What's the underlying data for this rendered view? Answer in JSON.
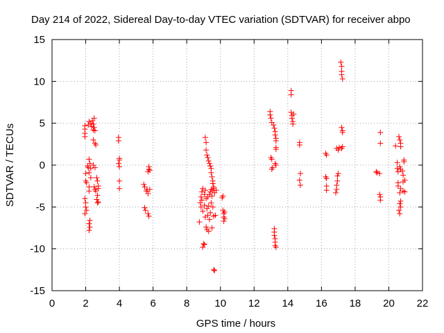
{
  "chart_data": {
    "type": "scatter",
    "title": "Day 214 of 2022, Sidereal Day-to-day VTEC variation (SDTVAR) for receiver abpo",
    "xlabel": "GPS time / hours",
    "ylabel": "SDTVAR / TECUs",
    "xlim": [
      0,
      22
    ],
    "ylim": [
      -15,
      15
    ],
    "xticks": [
      0,
      2,
      4,
      6,
      8,
      10,
      12,
      14,
      16,
      18,
      20,
      22
    ],
    "yticks": [
      -15,
      -10,
      -5,
      0,
      5,
      10,
      15
    ],
    "grid": true,
    "marker": "+",
    "color": "#ff0000",
    "series": [
      {
        "name": "SDTVAR",
        "points": [
          [
            1.95,
            4.7
          ],
          [
            1.95,
            4.3
          ],
          [
            1.95,
            3.8
          ],
          [
            1.95,
            3.4
          ],
          [
            2.0,
            -1.0
          ],
          [
            2.0,
            -1.9
          ],
          [
            2.05,
            -2.1
          ],
          [
            1.95,
            -4.0
          ],
          [
            2.0,
            -4.5
          ],
          [
            2.0,
            -5.0
          ],
          [
            2.05,
            -5.4
          ],
          [
            1.95,
            -5.8
          ],
          [
            2.1,
            -0.1
          ],
          [
            2.15,
            -0.3
          ],
          [
            2.2,
            0.7
          ],
          [
            2.25,
            0.2
          ],
          [
            2.3,
            -0.4
          ],
          [
            2.2,
            -0.9
          ],
          [
            2.3,
            -1.5
          ],
          [
            2.2,
            -2.6
          ],
          [
            2.2,
            -3.1
          ],
          [
            2.25,
            -6.6
          ],
          [
            2.2,
            -7.0
          ],
          [
            2.25,
            -7.4
          ],
          [
            2.2,
            -7.8
          ],
          [
            2.15,
            4.8
          ],
          [
            2.2,
            5.2
          ],
          [
            2.3,
            5.0
          ],
          [
            2.35,
            4.6
          ],
          [
            2.4,
            5.3
          ],
          [
            2.45,
            4.9
          ],
          [
            2.5,
            5.6
          ],
          [
            2.5,
            4.5
          ],
          [
            2.55,
            4.1
          ],
          [
            2.45,
            4.2
          ],
          [
            2.45,
            3.0
          ],
          [
            2.55,
            2.6
          ],
          [
            2.6,
            2.4
          ],
          [
            2.45,
            0.0
          ],
          [
            2.55,
            -0.3
          ],
          [
            2.5,
            -2.6
          ],
          [
            2.55,
            -2.9
          ],
          [
            2.6,
            -3.1
          ],
          [
            2.65,
            -1.5
          ],
          [
            2.7,
            -1.9
          ],
          [
            2.75,
            -2.5
          ],
          [
            2.75,
            -2.8
          ],
          [
            2.7,
            -3.6
          ],
          [
            2.65,
            -4.1
          ],
          [
            2.7,
            -4.5
          ],
          [
            2.75,
            -4.4
          ],
          [
            3.95,
            3.3
          ],
          [
            3.95,
            2.9
          ],
          [
            4.0,
            0.8
          ],
          [
            4.0,
            0.6
          ],
          [
            3.95,
            0.2
          ],
          [
            4.0,
            -0.2
          ],
          [
            4.0,
            -1.9
          ],
          [
            4.0,
            -2.8
          ],
          [
            5.45,
            -2.3
          ],
          [
            5.5,
            -2.6
          ],
          [
            5.5,
            -5.1
          ],
          [
            5.55,
            -5.4
          ],
          [
            5.6,
            -3.1
          ],
          [
            5.65,
            -2.9
          ],
          [
            5.7,
            -0.8
          ],
          [
            5.75,
            -0.5
          ],
          [
            5.75,
            -0.2
          ],
          [
            5.7,
            -3.4
          ],
          [
            5.7,
            -5.8
          ],
          [
            5.75,
            -6.1
          ],
          [
            5.8,
            -0.6
          ],
          [
            5.8,
            -2.9
          ],
          [
            8.75,
            -6.8
          ],
          [
            8.8,
            -4.5
          ],
          [
            8.85,
            -3.8
          ],
          [
            8.85,
            -5.0
          ],
          [
            8.9,
            -3.2
          ],
          [
            8.9,
            -4.2
          ],
          [
            8.95,
            -2.8
          ],
          [
            8.95,
            -5.5
          ],
          [
            8.95,
            -9.8
          ],
          [
            9.0,
            -9.4
          ],
          [
            9.05,
            -3.5
          ],
          [
            9.05,
            -4.8
          ],
          [
            9.05,
            -9.5
          ],
          [
            9.1,
            -3.0
          ],
          [
            9.1,
            -6.2
          ],
          [
            9.15,
            -4.0
          ],
          [
            9.15,
            -7.4
          ],
          [
            9.2,
            -5.2
          ],
          [
            9.2,
            -7.7
          ],
          [
            9.25,
            -3.8
          ],
          [
            9.25,
            -6.0
          ],
          [
            9.3,
            -4.9
          ],
          [
            9.3,
            -7.9
          ],
          [
            9.35,
            -3.5
          ],
          [
            9.35,
            -6.5
          ],
          [
            9.4,
            -3.2
          ],
          [
            9.4,
            -5.7
          ],
          [
            9.45,
            -2.9
          ],
          [
            9.45,
            -4.5
          ],
          [
            9.5,
            -3.7
          ],
          [
            9.5,
            -7.5
          ],
          [
            9.55,
            -3.0
          ],
          [
            9.55,
            -5.0
          ],
          [
            9.6,
            -2.8
          ],
          [
            9.6,
            -6.1
          ],
          [
            9.65,
            -3.3
          ],
          [
            9.1,
            3.3
          ],
          [
            9.15,
            2.7
          ],
          [
            9.15,
            1.8
          ],
          [
            9.2,
            1.2
          ],
          [
            9.25,
            0.9
          ],
          [
            9.3,
            0.5
          ],
          [
            9.35,
            0.2
          ],
          [
            9.4,
            -0.1
          ],
          [
            9.45,
            -0.4
          ],
          [
            9.45,
            -0.9
          ],
          [
            9.5,
            -1.4
          ],
          [
            9.55,
            -1.9
          ],
          [
            9.55,
            -2.2
          ],
          [
            9.6,
            -2.6
          ],
          [
            9.6,
            -12.5
          ],
          [
            9.65,
            -12.6
          ],
          [
            9.7,
            -6.0
          ],
          [
            9.75,
            -3.0
          ],
          [
            10.1,
            -3.9
          ],
          [
            10.15,
            -3.7
          ],
          [
            10.15,
            -5.4
          ],
          [
            10.2,
            -5.8
          ],
          [
            10.2,
            -6.2
          ],
          [
            10.2,
            -6.7
          ],
          [
            10.25,
            -6.4
          ],
          [
            10.25,
            -5.6
          ],
          [
            12.95,
            6.4
          ],
          [
            12.95,
            6.0
          ],
          [
            13.0,
            5.6
          ],
          [
            13.05,
            5.1
          ],
          [
            13.0,
            0.9
          ],
          [
            13.05,
            0.7
          ],
          [
            13.05,
            -0.5
          ],
          [
            13.1,
            -0.3
          ],
          [
            13.15,
            4.8
          ],
          [
            13.2,
            4.4
          ],
          [
            13.25,
            4.0
          ],
          [
            13.25,
            3.6
          ],
          [
            13.3,
            3.2
          ],
          [
            13.3,
            2.9
          ],
          [
            13.3,
            2.1
          ],
          [
            13.3,
            1.9
          ],
          [
            13.25,
            0.2
          ],
          [
            13.3,
            0.0
          ],
          [
            13.2,
            -7.6
          ],
          [
            13.2,
            -8.0
          ],
          [
            13.2,
            -8.4
          ],
          [
            13.25,
            -8.8
          ],
          [
            13.25,
            -9.2
          ],
          [
            13.25,
            -9.6
          ],
          [
            13.3,
            -9.8
          ],
          [
            14.2,
            8.9
          ],
          [
            14.2,
            8.4
          ],
          [
            14.2,
            6.3
          ],
          [
            14.25,
            5.9
          ],
          [
            14.25,
            5.6
          ],
          [
            14.3,
            5.2
          ],
          [
            14.3,
            4.9
          ],
          [
            14.35,
            6.1
          ],
          [
            14.7,
            2.7
          ],
          [
            14.7,
            2.4
          ],
          [
            14.75,
            -1.0
          ],
          [
            14.7,
            -1.8
          ],
          [
            14.75,
            -2.4
          ],
          [
            16.25,
            1.4
          ],
          [
            16.3,
            1.2
          ],
          [
            16.25,
            -1.4
          ],
          [
            16.3,
            -1.6
          ],
          [
            16.3,
            -2.5
          ],
          [
            16.3,
            -3.0
          ],
          [
            16.85,
            -3.3
          ],
          [
            16.9,
            -2.9
          ],
          [
            16.9,
            -2.4
          ],
          [
            16.95,
            -1.9
          ],
          [
            16.95,
            -1.3
          ],
          [
            17.0,
            -1.0
          ],
          [
            16.9,
            2.0
          ],
          [
            17.0,
            1.8
          ],
          [
            17.05,
            2.1
          ],
          [
            17.15,
            12.3
          ],
          [
            17.2,
            11.8
          ],
          [
            17.2,
            11.2
          ],
          [
            17.2,
            10.8
          ],
          [
            17.25,
            10.3
          ],
          [
            17.2,
            4.5
          ],
          [
            17.25,
            4.1
          ],
          [
            17.25,
            3.9
          ],
          [
            17.2,
            2.0
          ],
          [
            17.25,
            2.2
          ],
          [
            19.25,
            -0.8
          ],
          [
            19.3,
            -0.9
          ],
          [
            19.45,
            -1.0
          ],
          [
            19.5,
            3.9
          ],
          [
            19.5,
            2.6
          ],
          [
            19.45,
            -3.5
          ],
          [
            19.5,
            -3.8
          ],
          [
            19.5,
            -4.2
          ],
          [
            20.4,
            2.3
          ],
          [
            20.5,
            0.3
          ],
          [
            20.5,
            -0.4
          ],
          [
            20.55,
            -0.8
          ],
          [
            20.55,
            -2.1
          ],
          [
            20.55,
            -2.5
          ],
          [
            20.6,
            3.4
          ],
          [
            20.65,
            3.0
          ],
          [
            20.7,
            2.6
          ],
          [
            20.7,
            2.2
          ],
          [
            20.65,
            -0.2
          ],
          [
            20.7,
            -0.5
          ],
          [
            20.7,
            -2.8
          ],
          [
            20.65,
            -3.3
          ],
          [
            20.7,
            -4.3
          ],
          [
            20.65,
            -4.6
          ],
          [
            20.7,
            -5.0
          ],
          [
            20.6,
            -5.4
          ],
          [
            20.65,
            -5.8
          ],
          [
            20.8,
            -0.7
          ],
          [
            20.85,
            -1.2
          ],
          [
            20.85,
            -2.0
          ],
          [
            20.85,
            -3.1
          ],
          [
            20.9,
            0.6
          ],
          [
            20.9,
            0.4
          ],
          [
            20.95,
            -1.8
          ],
          [
            20.95,
            -3.2
          ]
        ]
      }
    ]
  }
}
